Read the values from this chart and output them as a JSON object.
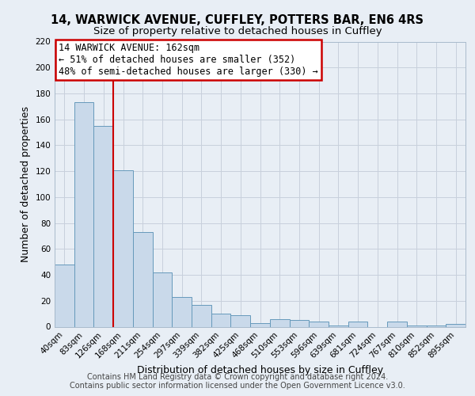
{
  "title1": "14, WARWICK AVENUE, CUFFLEY, POTTERS BAR, EN6 4RS",
  "title2": "Size of property relative to detached houses in Cuffley",
  "xlabel": "Distribution of detached houses by size in Cuffley",
  "ylabel": "Number of detached properties",
  "bar_labels": [
    "40sqm",
    "83sqm",
    "126sqm",
    "168sqm",
    "211sqm",
    "254sqm",
    "297sqm",
    "339sqm",
    "382sqm",
    "425sqm",
    "468sqm",
    "510sqm",
    "553sqm",
    "596sqm",
    "639sqm",
    "681sqm",
    "724sqm",
    "767sqm",
    "810sqm",
    "852sqm",
    "895sqm"
  ],
  "bar_values": [
    48,
    173,
    155,
    121,
    73,
    42,
    23,
    17,
    10,
    9,
    3,
    6,
    5,
    4,
    1,
    4,
    0,
    4,
    1,
    1,
    2
  ],
  "bar_color": "#c9d9ea",
  "bar_edgecolor": "#6699bb",
  "vline_color": "#cc0000",
  "vline_pos": 2.5,
  "annotation_line1": "14 WARWICK AVENUE: 162sqm",
  "annotation_line2": "← 51% of detached houses are smaller (352)",
  "annotation_line3": "48% of semi-detached houses are larger (330) →",
  "annotation_box_edgecolor": "#cc0000",
  "annotation_box_facecolor": "#ffffff",
  "ylim": [
    0,
    220
  ],
  "yticks": [
    0,
    20,
    40,
    60,
    80,
    100,
    120,
    140,
    160,
    180,
    200,
    220
  ],
  "grid_color": "#c8d0dc",
  "background_color": "#e8eef5",
  "plot_bg_color": "#e8eef5",
  "footer1": "Contains HM Land Registry data © Crown copyright and database right 2024.",
  "footer2": "Contains public sector information licensed under the Open Government Licence v3.0.",
  "title1_fontsize": 10.5,
  "title2_fontsize": 9.5,
  "axis_label_fontsize": 9,
  "tick_fontsize": 7.5,
  "annotation_fontsize": 8.5,
  "footer_fontsize": 7
}
